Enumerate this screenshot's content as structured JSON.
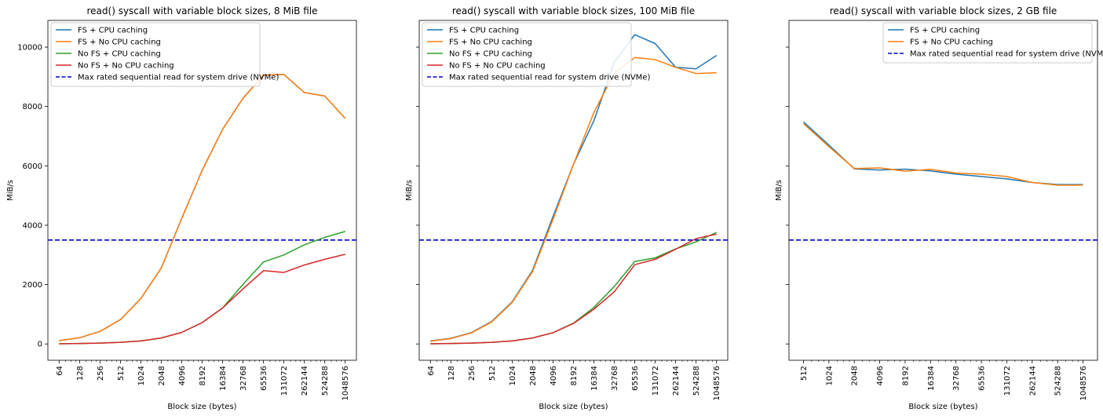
{
  "colors": {
    "fs_cpu": "#1f77b4",
    "fs_nocpu": "#ff7f0e",
    "nofs_cpu": "#2ca02c",
    "nofs_nocpu": "#d62728",
    "max_line": "#0000cc"
  },
  "chart_data": [
    {
      "type": "line",
      "title": "read() syscall with variable block sizes, 8 MiB file",
      "xlabel": "Block size (bytes)",
      "ylabel": "MiB/s",
      "x_scale": "log2",
      "ylim": [
        -550,
        10900
      ],
      "yticks": [
        0,
        2000,
        4000,
        6000,
        8000,
        10000
      ],
      "x": [
        64,
        128,
        256,
        512,
        1024,
        2048,
        4096,
        8192,
        16384,
        32768,
        65536,
        131072,
        262144,
        524288,
        1048576
      ],
      "legend_position": "top-left",
      "series": [
        {
          "name": "FS + CPU caching",
          "color_key": "fs_cpu",
          "values": [
            110,
            210,
            420,
            820,
            1530,
            2560,
            4230,
            5850,
            7230,
            8280,
            9060,
            9080,
            8470,
            8350,
            7600
          ]
        },
        {
          "name": "FS + No CPU caching",
          "color_key": "fs_nocpu",
          "values": [
            110,
            210,
            420,
            820,
            1530,
            2560,
            4230,
            5850,
            7230,
            8280,
            9060,
            9080,
            8470,
            8350,
            7600
          ]
        },
        {
          "name": "No FS + CPU caching",
          "color_key": "nofs_cpu",
          "values": [
            5,
            15,
            30,
            55,
            100,
            200,
            390,
            720,
            1210,
            2010,
            2760,
            3000,
            3340,
            3590,
            3790
          ]
        },
        {
          "name": "No FS + No CPU caching",
          "color_key": "nofs_nocpu",
          "values": [
            5,
            15,
            30,
            55,
            100,
            200,
            390,
            720,
            1210,
            1860,
            2470,
            2410,
            2660,
            2850,
            3020
          ]
        }
      ],
      "hline": {
        "name": "Max rated sequential read for system drive (NVMe)",
        "value": 3500,
        "color_key": "max_line",
        "style": "dashed"
      }
    },
    {
      "type": "line",
      "title": "read() syscall with variable block sizes, 100 MiB file",
      "xlabel": "Block size (bytes)",
      "ylabel": "MiB/s",
      "x_scale": "log2",
      "ylim": [
        -550,
        10900
      ],
      "yticks": [],
      "x": [
        64,
        128,
        256,
        512,
        1024,
        2048,
        4096,
        8192,
        16384,
        32768,
        65536,
        131072,
        262144,
        524288,
        1048576
      ],
      "legend_position": "top-left",
      "series": [
        {
          "name": "FS + CPU caching",
          "color_key": "fs_cpu",
          "values": [
            100,
            190,
            380,
            760,
            1420,
            2480,
            4300,
            6050,
            7520,
            9500,
            10420,
            10120,
            9320,
            9270,
            9720
          ]
        },
        {
          "name": "FS + No CPU caching",
          "color_key": "fs_nocpu",
          "values": [
            90,
            180,
            370,
            740,
            1400,
            2440,
            4200,
            6050,
            7800,
            9130,
            9650,
            9580,
            9320,
            9110,
            9140
          ]
        },
        {
          "name": "No FS + CPU caching",
          "color_key": "nofs_cpu",
          "values": [
            5,
            15,
            30,
            55,
            100,
            200,
            380,
            700,
            1230,
            1940,
            2780,
            2900,
            3200,
            3440,
            3760
          ]
        },
        {
          "name": "No FS + No CPU caching",
          "color_key": "nofs_nocpu",
          "values": [
            5,
            15,
            30,
            55,
            100,
            200,
            380,
            690,
            1170,
            1760,
            2670,
            2850,
            3190,
            3550,
            3700
          ]
        }
      ],
      "hline": {
        "name": "Max rated sequential read for system drive (NVMe)",
        "value": 3500,
        "color_key": "max_line",
        "style": "dashed"
      }
    },
    {
      "type": "line",
      "title": "read() syscall with variable block sizes, 2 GB file",
      "xlabel": "Block size (bytes)",
      "ylabel": "MiB/s",
      "x_scale": "log2",
      "ylim": [
        -550,
        10900
      ],
      "yticks": [],
      "x": [
        512,
        1024,
        2048,
        4096,
        8192,
        16384,
        32768,
        65536,
        131072,
        262144,
        524288,
        1048576
      ],
      "legend_position": "top-right",
      "series": [
        {
          "name": "FS + CPU caching",
          "color_key": "fs_cpu",
          "values": [
            7480,
            6700,
            5900,
            5860,
            5890,
            5830,
            5720,
            5640,
            5560,
            5440,
            5370,
            5370
          ]
        },
        {
          "name": "FS + No CPU caching",
          "color_key": "fs_nocpu",
          "values": [
            7420,
            6650,
            5910,
            5930,
            5820,
            5880,
            5760,
            5720,
            5640,
            5440,
            5350,
            5350
          ]
        }
      ],
      "hline": {
        "name": "Max rated sequential read for system drive (NVMe)",
        "value": 3500,
        "color_key": "max_line",
        "style": "dashed"
      }
    }
  ]
}
